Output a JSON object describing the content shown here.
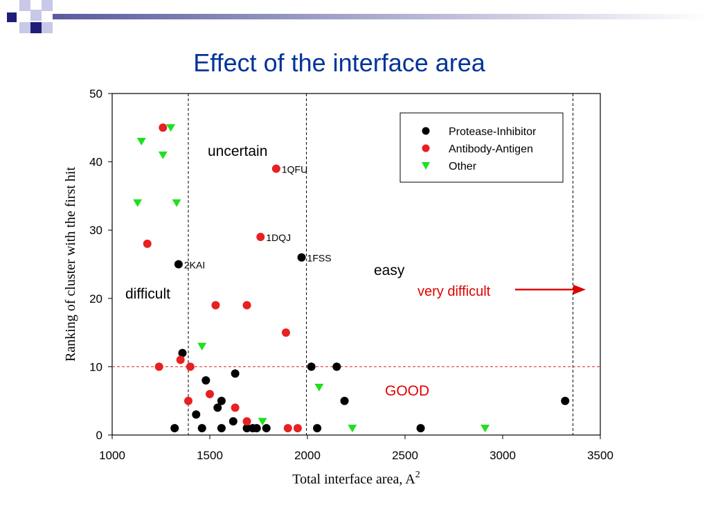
{
  "slide": {
    "title": "Effect of the interface area"
  },
  "colors": {
    "title": "#003399",
    "protease": "#000000",
    "antibody": "#e82020",
    "other": "#1ee01e",
    "red_text": "#e00000",
    "logo_dark": "#1e1e78",
    "logo_light": "#c8c8e8"
  },
  "chart_data": {
    "type": "scatter",
    "xlabel": "Total interface area, A",
    "xlabel_sup": "2",
    "ylabel": "Ranking of cluster with the first hit",
    "xlim": [
      1000,
      3500
    ],
    "ylim": [
      0,
      50
    ],
    "xticks": [
      "1000",
      "1500",
      "2000",
      "2500",
      "3000",
      "3500"
    ],
    "yticks": [
      "0",
      "10",
      "20",
      "30",
      "40",
      "50"
    ],
    "legend_position": "top-right",
    "vlines": [
      1390,
      1995,
      3360
    ],
    "hline": 10,
    "series": [
      {
        "name": "Protease-Inhibitor",
        "marker": "circle",
        "color": "#000000",
        "points": [
          [
            1320,
            1
          ],
          [
            1340,
            25
          ],
          [
            1360,
            12
          ],
          [
            1430,
            3
          ],
          [
            1460,
            1
          ],
          [
            1480,
            8
          ],
          [
            1540,
            4
          ],
          [
            1560,
            5
          ],
          [
            1560,
            1
          ],
          [
            1620,
            2
          ],
          [
            1630,
            9
          ],
          [
            1690,
            1
          ],
          [
            1720,
            1
          ],
          [
            1740,
            1
          ],
          [
            1790,
            1
          ],
          [
            1970,
            26
          ],
          [
            2020,
            10
          ],
          [
            2050,
            1
          ],
          [
            2150,
            10
          ],
          [
            2190,
            5
          ],
          [
            2580,
            1
          ],
          [
            3320,
            5
          ]
        ]
      },
      {
        "name": "Antibody-Antigen",
        "marker": "circle",
        "color": "#e82020",
        "points": [
          [
            1240,
            10
          ],
          [
            1260,
            45
          ],
          [
            1180,
            28
          ],
          [
            1350,
            11
          ],
          [
            1390,
            5
          ],
          [
            1400,
            10
          ],
          [
            1500,
            6
          ],
          [
            1530,
            19
          ],
          [
            1630,
            4
          ],
          [
            1690,
            19
          ],
          [
            1690,
            2
          ],
          [
            1760,
            29
          ],
          [
            1840,
            39
          ],
          [
            1890,
            15
          ],
          [
            1900,
            1
          ],
          [
            1950,
            1
          ]
        ]
      },
      {
        "name": "Other",
        "marker": "triangle-down",
        "color": "#1ee01e",
        "points": [
          [
            1130,
            34
          ],
          [
            1150,
            43
          ],
          [
            1260,
            41
          ],
          [
            1300,
            45
          ],
          [
            1330,
            34
          ],
          [
            1460,
            13
          ],
          [
            1770,
            2
          ],
          [
            2060,
            7
          ],
          [
            2230,
            1
          ],
          [
            2910,
            1
          ]
        ]
      }
    ],
    "point_labels": [
      {
        "text": "2KAI",
        "x": 1340,
        "y": 25
      },
      {
        "text": "1QFU",
        "x": 1840,
        "y": 39
      },
      {
        "text": "1DQJ",
        "x": 1760,
        "y": 29
      },
      {
        "text": "1FSS",
        "x": 1970,
        "y": 26
      }
    ],
    "annotations": {
      "uncertain": "uncertain",
      "difficult": "difficult",
      "easy": "easy",
      "very_difficult": "very difficult",
      "good": "GOOD"
    }
  }
}
